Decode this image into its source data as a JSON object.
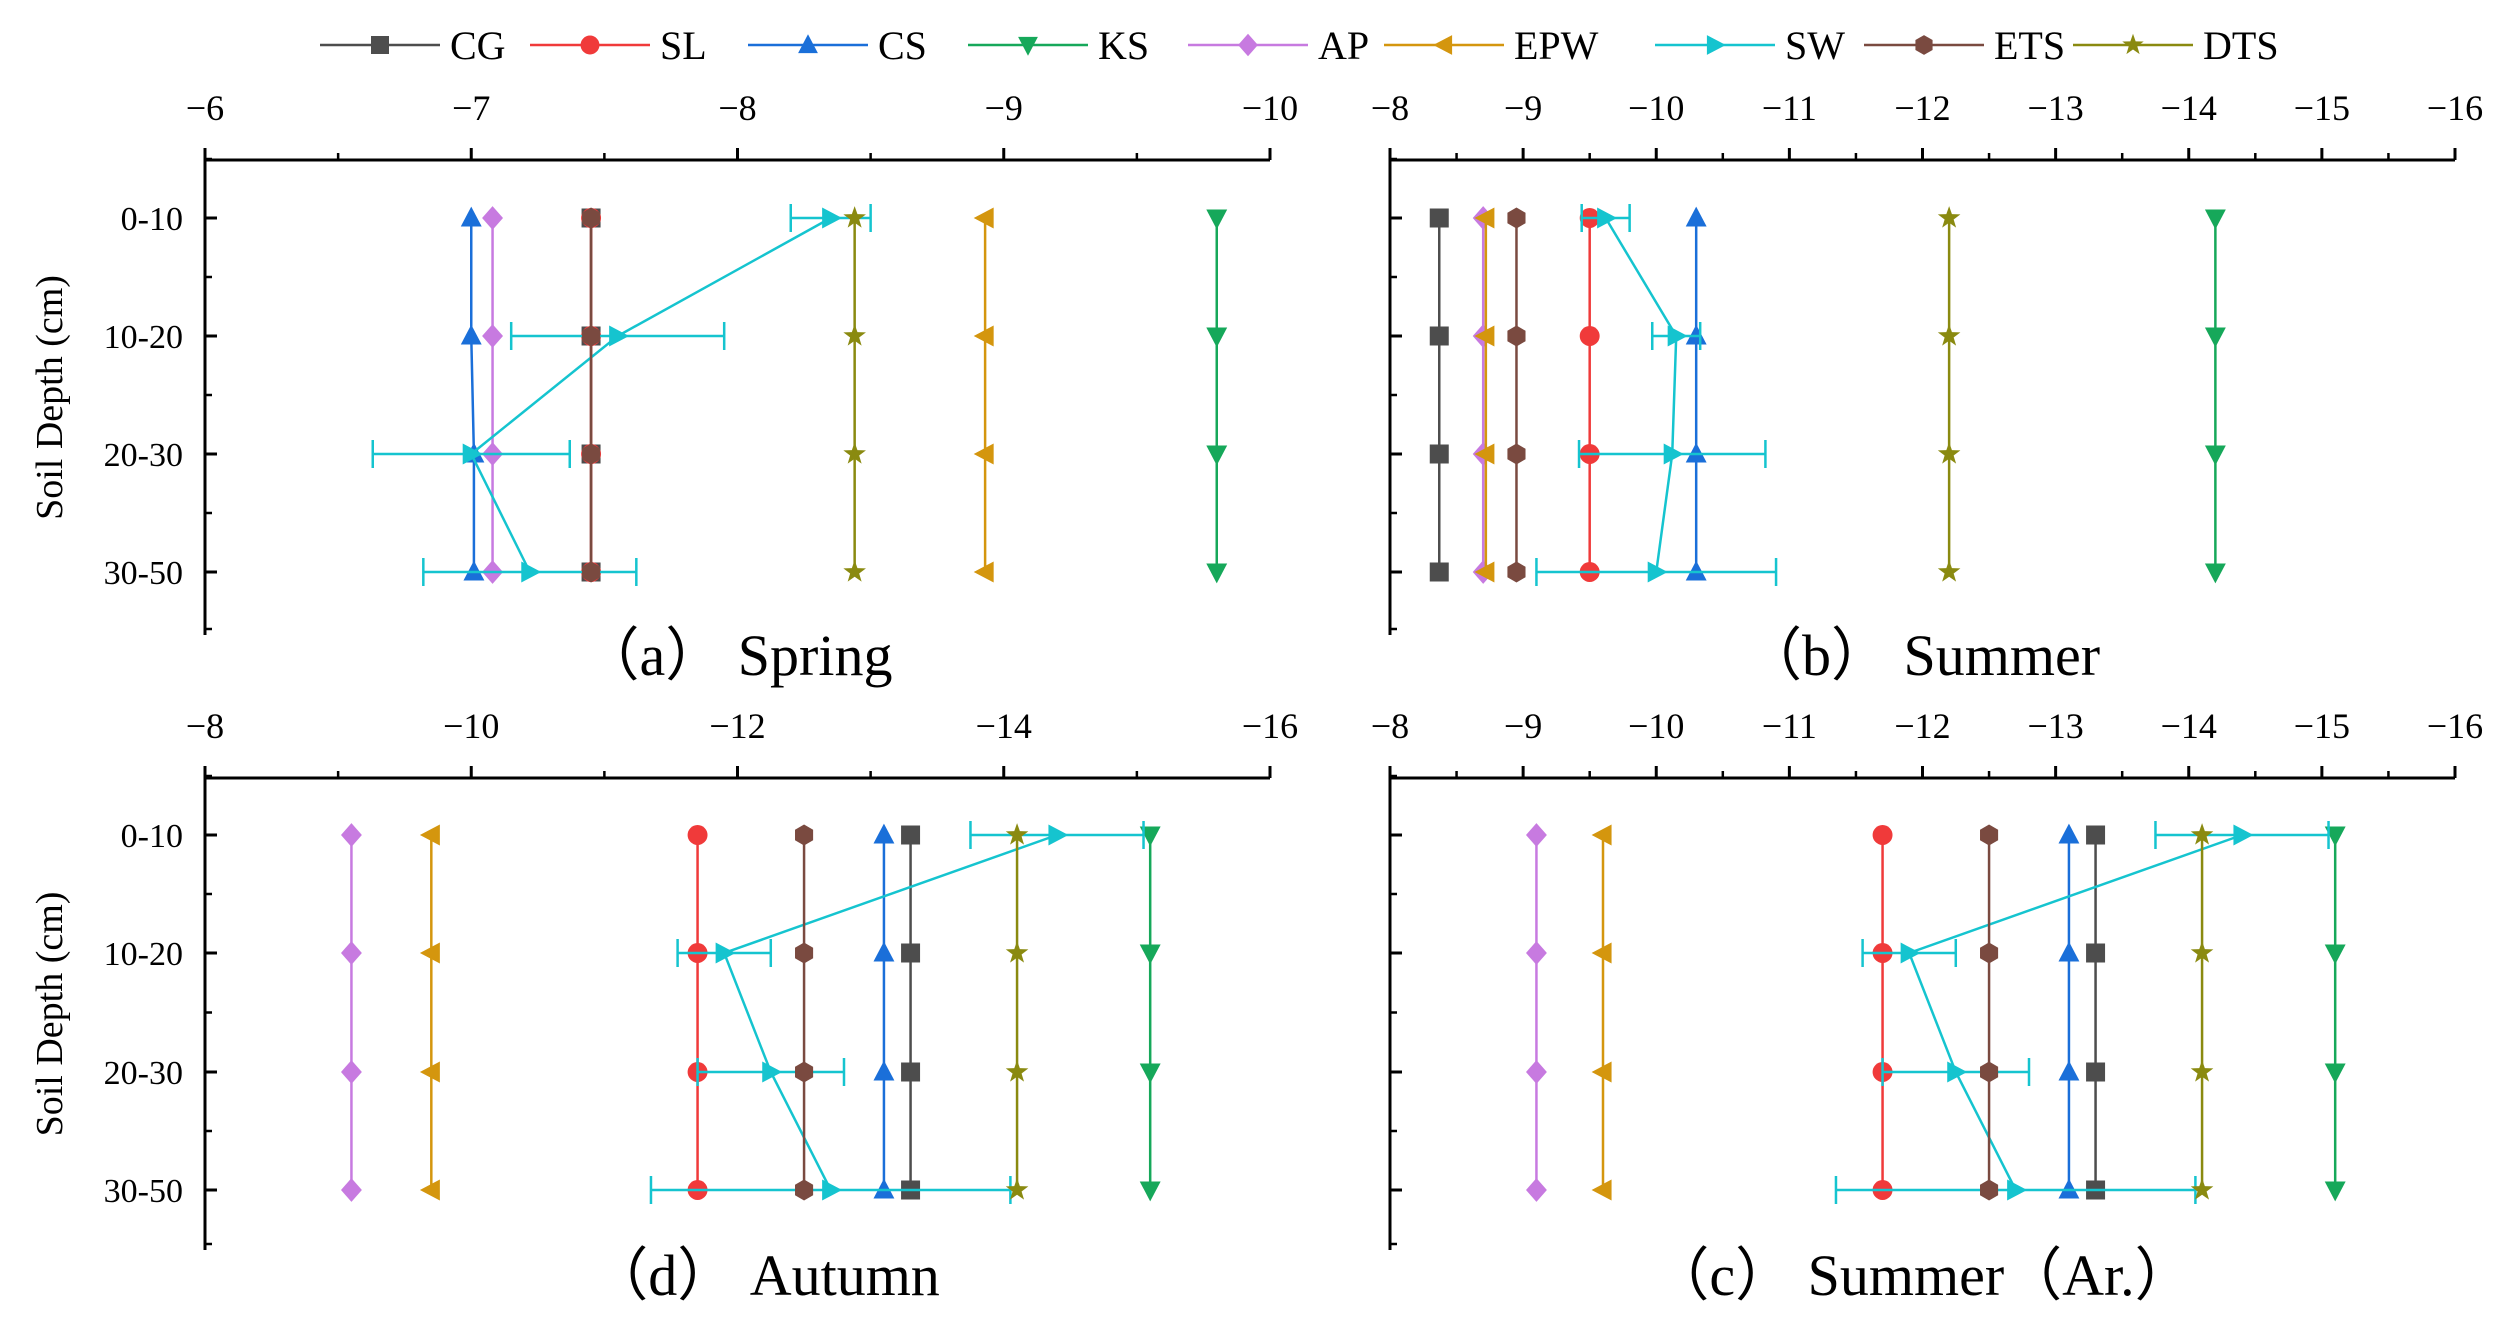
{
  "legend": [
    {
      "name": "CG",
      "color": "#4d4d4d",
      "marker": "square"
    },
    {
      "name": "SL",
      "color": "#f03a3a",
      "marker": "circle"
    },
    {
      "name": "CS",
      "color": "#1a6fd9",
      "marker": "triangle-up"
    },
    {
      "name": "KS",
      "color": "#16a85a",
      "marker": "triangle-down"
    },
    {
      "name": "AP",
      "color": "#c77ae0",
      "marker": "diamond"
    },
    {
      "name": "EPW",
      "color": "#d4960e",
      "marker": "triangle-left"
    },
    {
      "name": "SW",
      "color": "#15c4cf",
      "marker": "triangle-right"
    },
    {
      "name": "ETS",
      "color": "#7a4a40",
      "marker": "hexagon"
    },
    {
      "name": "DTS",
      "color": "#8a8a10",
      "marker": "star"
    }
  ],
  "chart_data": [
    {
      "type": "line",
      "id": "spring",
      "title": "（a） Spring",
      "ylabel": "Soil Depth (cm)",
      "categories": [
        "0-10",
        "10-20",
        "20-30",
        "30-50"
      ],
      "xlim": [
        -6,
        -10
      ],
      "xticks": [
        "−6",
        "−7",
        "−8",
        "−9",
        "−10"
      ],
      "series": [
        {
          "name": "CG",
          "x": [
            -7.45,
            -7.45,
            -7.45,
            -7.45
          ]
        },
        {
          "name": "SL",
          "x": [
            -7.45,
            -7.45,
            -7.45,
            -7.45
          ]
        },
        {
          "name": "CS",
          "x": [
            -7.0,
            -7.0,
            -7.01,
            -7.01
          ]
        },
        {
          "name": "KS",
          "x": [
            -9.8,
            -9.8,
            -9.8,
            -9.8
          ]
        },
        {
          "name": "AP",
          "x": [
            -7.08,
            -7.08,
            -7.08,
            -7.08
          ]
        },
        {
          "name": "EPW",
          "x": [
            -8.93,
            -8.93,
            -8.93,
            -8.93
          ]
        },
        {
          "name": "SW",
          "x": [
            -8.35,
            -7.55,
            -7.0,
            -7.22
          ],
          "err": [
            0.15,
            0.4,
            0.37,
            0.4
          ]
        },
        {
          "name": "ETS",
          "x": [
            -7.45,
            -7.45,
            -7.45,
            -7.45
          ]
        },
        {
          "name": "DTS",
          "x": [
            -8.44,
            -8.44,
            -8.44,
            -8.44
          ]
        }
      ]
    },
    {
      "type": "line",
      "id": "summer",
      "title": "（b） Summer",
      "ylabel": "",
      "categories": [
        "0-10",
        "10-20",
        "20-30",
        "30-50"
      ],
      "xlim": [
        -8,
        -16
      ],
      "xticks": [
        "−8",
        "−9",
        "−10",
        "−11",
        "−12",
        "−13",
        "−14",
        "−15",
        "−16"
      ],
      "series": [
        {
          "name": "CG",
          "x": [
            -8.37,
            -8.37,
            -8.37,
            -8.37
          ]
        },
        {
          "name": "SL",
          "x": [
            -9.5,
            -9.5,
            -9.5,
            -9.5
          ]
        },
        {
          "name": "CS",
          "x": [
            -10.3,
            -10.3,
            -10.3,
            -10.3
          ]
        },
        {
          "name": "KS",
          "x": [
            -14.2,
            -14.2,
            -14.2,
            -14.2
          ]
        },
        {
          "name": "AP",
          "x": [
            -8.7,
            -8.7,
            -8.7,
            -8.7
          ]
        },
        {
          "name": "EPW",
          "x": [
            -8.72,
            -8.72,
            -8.72,
            -8.72
          ]
        },
        {
          "name": "SW",
          "x": [
            -9.62,
            -10.15,
            -10.12,
            -10.0
          ],
          "err": [
            0.18,
            0.18,
            0.7,
            0.9
          ]
        },
        {
          "name": "ETS",
          "x": [
            -8.95,
            -8.95,
            -8.95,
            -8.95
          ]
        },
        {
          "name": "DTS",
          "x": [
            -12.2,
            -12.2,
            -12.2,
            -12.2
          ]
        }
      ]
    },
    {
      "type": "line",
      "id": "autumn",
      "title": "（d） Autumn",
      "ylabel": "Soil Depth (cm)",
      "categories": [
        "0-10",
        "10-20",
        "20-30",
        "30-50"
      ],
      "xlim": [
        -8,
        -16
      ],
      "xticks": [
        "−8",
        "−10",
        "−12",
        "−14",
        "−16"
      ],
      "series": [
        {
          "name": "CG",
          "x": [
            -13.3,
            -13.3,
            -13.3,
            -13.3
          ]
        },
        {
          "name": "SL",
          "x": [
            -11.7,
            -11.7,
            -11.7,
            -11.7
          ]
        },
        {
          "name": "CS",
          "x": [
            -13.1,
            -13.1,
            -13.1,
            -13.1
          ]
        },
        {
          "name": "KS",
          "x": [
            -15.1,
            -15.1,
            -15.1,
            -15.1
          ]
        },
        {
          "name": "AP",
          "x": [
            -9.1,
            -9.1,
            -9.1,
            -9.1
          ]
        },
        {
          "name": "EPW",
          "x": [
            -9.7,
            -9.7,
            -9.7,
            -9.7
          ]
        },
        {
          "name": "SW",
          "x": [
            -14.4,
            -11.9,
            -12.25,
            -12.7
          ],
          "err": [
            0.65,
            0.35,
            0.55,
            1.35
          ]
        },
        {
          "name": "ETS",
          "x": [
            -12.5,
            -12.5,
            -12.5,
            -12.5
          ]
        },
        {
          "name": "DTS",
          "x": [
            -14.1,
            -14.1,
            -14.1,
            -14.1
          ]
        }
      ]
    },
    {
      "type": "line",
      "id": "summer-ar",
      "title": "（c） Summer（Ar.）",
      "ylabel": "",
      "categories": [
        "0-10",
        "10-20",
        "20-30",
        "30-50"
      ],
      "xlim": [
        -8,
        -16
      ],
      "xticks": [
        "−8",
        "−9",
        "−10",
        "−11",
        "−12",
        "−13",
        "−14",
        "−15",
        "−16"
      ],
      "series": [
        {
          "name": "CG",
          "x": [
            -13.3,
            -13.3,
            -13.3,
            -13.3
          ]
        },
        {
          "name": "SL",
          "x": [
            -11.7,
            -11.7,
            -11.7,
            -11.7
          ]
        },
        {
          "name": "CS",
          "x": [
            -13.1,
            -13.1,
            -13.1,
            -13.1
          ]
        },
        {
          "name": "KS",
          "x": [
            -15.1,
            -15.1,
            -15.1,
            -15.1
          ]
        },
        {
          "name": "AP",
          "x": [
            -9.1,
            -9.1,
            -9.1,
            -9.1
          ]
        },
        {
          "name": "EPW",
          "x": [
            -9.6,
            -9.6,
            -9.6,
            -9.6
          ]
        },
        {
          "name": "SW",
          "x": [
            -14.4,
            -11.9,
            -12.25,
            -12.7
          ],
          "err": [
            0.65,
            0.35,
            0.55,
            1.35
          ]
        },
        {
          "name": "ETS",
          "x": [
            -12.5,
            -12.5,
            -12.5,
            -12.5
          ]
        },
        {
          "name": "DTS",
          "x": [
            -14.1,
            -14.1,
            -14.1,
            -14.1
          ]
        }
      ]
    }
  ]
}
